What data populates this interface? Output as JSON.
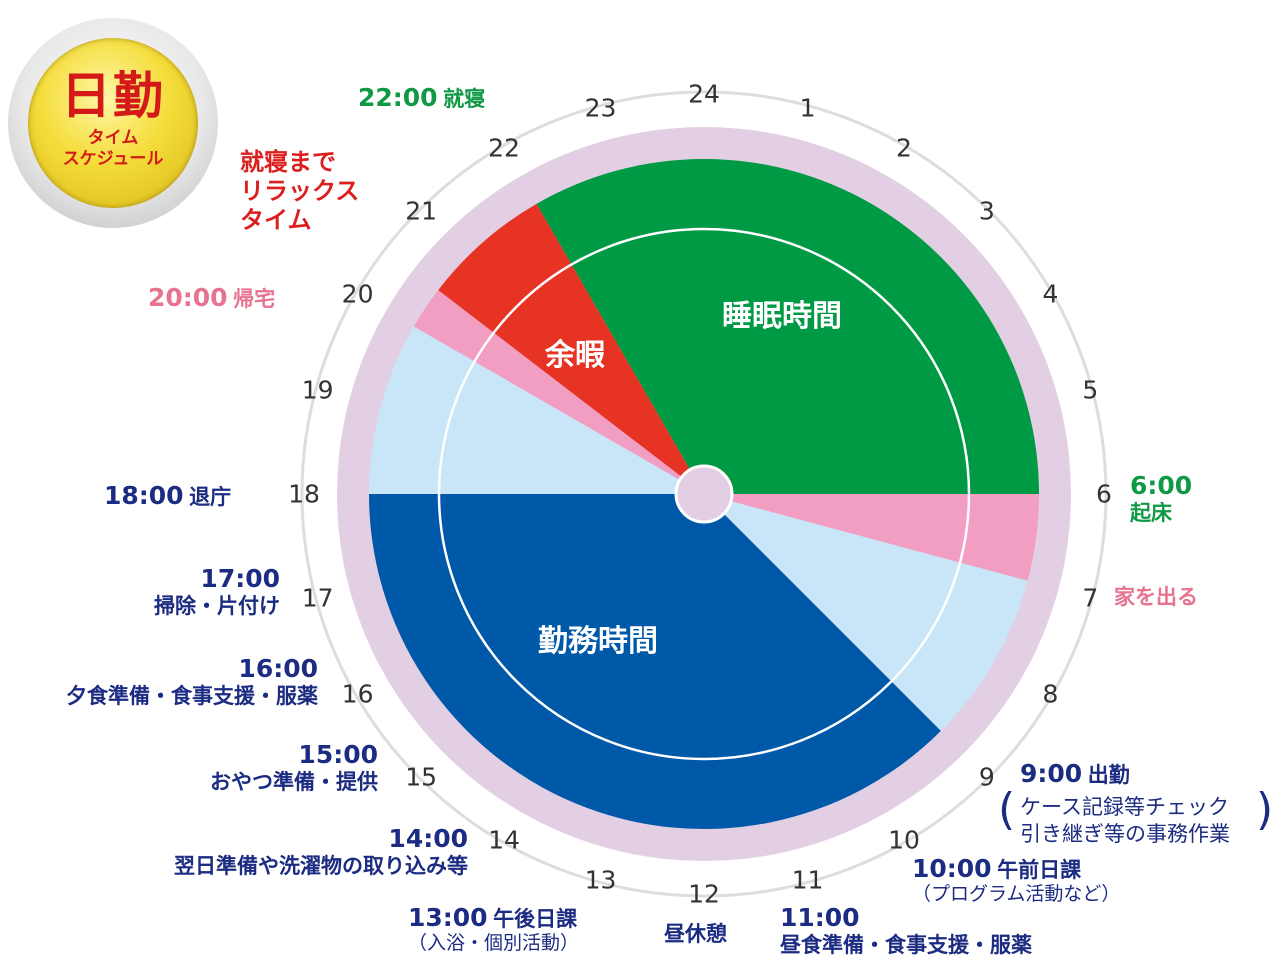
{
  "badge": {
    "title": "日勤",
    "subtitle_line1": "タイム",
    "subtitle_line2": "スケジュール"
  },
  "hours": [
    "24",
    "1",
    "2",
    "3",
    "4",
    "5",
    "6",
    "7",
    "8",
    "9",
    "10",
    "11",
    "12",
    "13",
    "14",
    "15",
    "16",
    "17",
    "18",
    "19",
    "20",
    "21",
    "22",
    "23"
  ],
  "segments": [
    {
      "name": "睡眠時間",
      "start": 22,
      "end": 6,
      "color": "#009944",
      "label": "睡眠時間"
    },
    {
      "name": "home-morning",
      "start": 6,
      "end": 7,
      "color": "#f19ec2",
      "label": ""
    },
    {
      "name": "commute-morning",
      "start": 7,
      "end": 9,
      "color": "#c8e6f8",
      "label": ""
    },
    {
      "name": "勤務時間",
      "start": 9,
      "end": 18,
      "color": "#0058a8",
      "label": "勤務時間"
    },
    {
      "name": "commute-evening",
      "start": 18,
      "end": 20,
      "color": "#c8e6f8",
      "label": ""
    },
    {
      "name": "home-evening",
      "start": 20,
      "end": 20.5,
      "color": "#f19ec2",
      "label": ""
    },
    {
      "name": "余暇",
      "start": 20.5,
      "end": 22,
      "color": "#e63323",
      "label": "余暇"
    }
  ],
  "colors": {
    "ring": "#e3cfe4",
    "outer_line": "#dddddd",
    "hub": "#e3cfe4"
  },
  "events": {
    "e22": {
      "time": "22:00",
      "text": "就寝"
    },
    "e21": {
      "line1": "就寝まで",
      "line2": "リラックス",
      "line3": "タイム"
    },
    "e20": {
      "time": "20:00",
      "text": "帰宅"
    },
    "e18": {
      "time": "18:00",
      "text": "退庁"
    },
    "e17": {
      "time": "17:00",
      "text": "掃除・片付け"
    },
    "e16": {
      "time": "16:00",
      "text": "夕食準備・食事支援・服薬"
    },
    "e15": {
      "time": "15:00",
      "text": "おやつ準備・提供"
    },
    "e14": {
      "time": "14:00",
      "text": "翌日準備や洗濯物の取り込み等"
    },
    "e13": {
      "time": "13:00",
      "text": "午後日課",
      "sub": "（入浴・個別活動）"
    },
    "e12": {
      "text": "昼休憩"
    },
    "e11": {
      "time": "11:00",
      "text": "昼食準備・食事支援・服薬"
    },
    "e10": {
      "time": "10:00",
      "text": "午前日課",
      "sub": "（プログラム活動など）"
    },
    "e9": {
      "time": "9:00",
      "text": "出勤",
      "sub1": "ケース記録等チェック",
      "sub2": "引き継ぎ等の事務作業"
    },
    "e7": {
      "text": "家を出る"
    },
    "e6": {
      "time": "6:00",
      "text": "起床"
    }
  }
}
